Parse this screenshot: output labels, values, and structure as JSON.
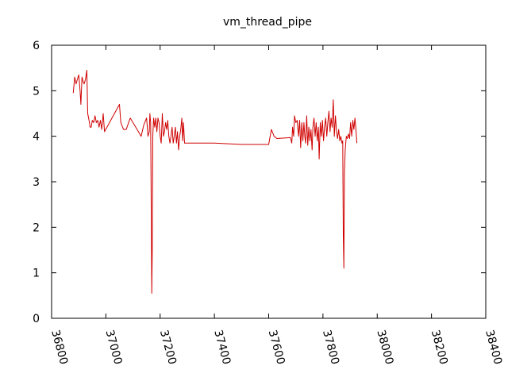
{
  "chart_data": {
    "type": "line",
    "title": "vm_thread_pipe",
    "xlabel": "",
    "ylabel": "",
    "xlim": [
      36800,
      38400
    ],
    "ylim": [
      0,
      6
    ],
    "x_ticks": [
      36800,
      37000,
      37200,
      37400,
      37600,
      37800,
      38000,
      38200,
      38400
    ],
    "y_ticks": [
      0,
      1,
      2,
      3,
      4,
      5,
      6
    ],
    "grid": false,
    "legend": "none",
    "series": [
      {
        "color": "#d00000",
        "points": [
          [
            36880,
            4.95
          ],
          [
            36885,
            5.3
          ],
          [
            36890,
            5.15
          ],
          [
            36895,
            5.25
          ],
          [
            36900,
            5.35
          ],
          [
            36905,
            5.0
          ],
          [
            36908,
            4.7
          ],
          [
            36912,
            5.3
          ],
          [
            36916,
            5.2
          ],
          [
            36920,
            5.15
          ],
          [
            36925,
            5.25
          ],
          [
            36930,
            5.45
          ],
          [
            36933,
            4.5
          ],
          [
            36938,
            4.35
          ],
          [
            36942,
            4.2
          ],
          [
            36946,
            4.2
          ],
          [
            36950,
            4.35
          ],
          [
            36955,
            4.3
          ],
          [
            36960,
            4.45
          ],
          [
            36965,
            4.3
          ],
          [
            36970,
            4.35
          ],
          [
            36975,
            4.2
          ],
          [
            36980,
            4.35
          ],
          [
            36985,
            4.15
          ],
          [
            36990,
            4.5
          ],
          [
            36995,
            4.1
          ],
          [
            37050,
            4.7
          ],
          [
            37055,
            4.3
          ],
          [
            37065,
            4.15
          ],
          [
            37075,
            4.15
          ],
          [
            37090,
            4.4
          ],
          [
            37110,
            4.2
          ],
          [
            37120,
            4.1
          ],
          [
            37130,
            4.0
          ],
          [
            37140,
            4.25
          ],
          [
            37150,
            4.4
          ],
          [
            37155,
            4.0
          ],
          [
            37160,
            4.1
          ],
          [
            37162,
            4.5
          ],
          [
            37165,
            4.3
          ],
          [
            37167,
            2.5
          ],
          [
            37169,
            0.55
          ],
          [
            37171,
            1.5
          ],
          [
            37173,
            4.0
          ],
          [
            37176,
            4.4
          ],
          [
            37180,
            4.2
          ],
          [
            37184,
            4.4
          ],
          [
            37188,
            4.1
          ],
          [
            37192,
            4.4
          ],
          [
            37196,
            4.3
          ],
          [
            37200,
            4.0
          ],
          [
            37204,
            3.85
          ],
          [
            37208,
            4.5
          ],
          [
            37212,
            4.0
          ],
          [
            37216,
            4.1
          ],
          [
            37220,
            4.3
          ],
          [
            37224,
            4.15
          ],
          [
            37228,
            4.35
          ],
          [
            37232,
            4.0
          ],
          [
            37236,
            3.85
          ],
          [
            37240,
            4.0
          ],
          [
            37244,
            4.2
          ],
          [
            37248,
            3.85
          ],
          [
            37252,
            4.0
          ],
          [
            37256,
            4.2
          ],
          [
            37260,
            3.85
          ],
          [
            37264,
            4.1
          ],
          [
            37268,
            3.7
          ],
          [
            37272,
            4.0
          ],
          [
            37276,
            4.15
          ],
          [
            37280,
            4.4
          ],
          [
            37283,
            3.9
          ],
          [
            37286,
            4.3
          ],
          [
            37290,
            3.85
          ],
          [
            37400,
            3.85
          ],
          [
            37500,
            3.82
          ],
          [
            37600,
            3.82
          ],
          [
            37610,
            4.15
          ],
          [
            37620,
            4.0
          ],
          [
            37630,
            3.95
          ],
          [
            37680,
            3.97
          ],
          [
            37685,
            3.85
          ],
          [
            37688,
            4.2
          ],
          [
            37692,
            4.0
          ],
          [
            37695,
            4.45
          ],
          [
            37700,
            4.3
          ],
          [
            37705,
            4.35
          ],
          [
            37710,
            4.0
          ],
          [
            37714,
            4.35
          ],
          [
            37718,
            3.75
          ],
          [
            37722,
            4.3
          ],
          [
            37726,
            3.9
          ],
          [
            37730,
            4.3
          ],
          [
            37733,
            4.0
          ],
          [
            37736,
            3.85
          ],
          [
            37740,
            4.45
          ],
          [
            37744,
            3.8
          ],
          [
            37748,
            4.2
          ],
          [
            37752,
            3.9
          ],
          [
            37756,
            4.15
          ],
          [
            37760,
            3.7
          ],
          [
            37763,
            4.2
          ],
          [
            37767,
            4.4
          ],
          [
            37771,
            4.0
          ],
          [
            37775,
            4.3
          ],
          [
            37779,
            3.9
          ],
          [
            37783,
            4.2
          ],
          [
            37786,
            3.5
          ],
          [
            37790,
            4.3
          ],
          [
            37794,
            4.0
          ],
          [
            37798,
            4.35
          ],
          [
            37802,
            3.9
          ],
          [
            37806,
            4.2
          ],
          [
            37810,
            4.4
          ],
          [
            37814,
            4.0
          ],
          [
            37818,
            4.3
          ],
          [
            37822,
            4.55
          ],
          [
            37826,
            4.1
          ],
          [
            37830,
            4.4
          ],
          [
            37834,
            4.2
          ],
          [
            37838,
            4.8
          ],
          [
            37842,
            4.0
          ],
          [
            37846,
            4.45
          ],
          [
            37850,
            4.1
          ],
          [
            37854,
            3.95
          ],
          [
            37858,
            4.15
          ],
          [
            37862,
            3.9
          ],
          [
            37866,
            4.0
          ],
          [
            37870,
            3.85
          ],
          [
            37873,
            3.9
          ],
          [
            37875,
            1.8
          ],
          [
            37877,
            1.1
          ],
          [
            37879,
            3.2
          ],
          [
            37882,
            3.7
          ],
          [
            37886,
            4.0
          ],
          [
            37890,
            3.95
          ],
          [
            37894,
            4.05
          ],
          [
            37898,
            3.95
          ],
          [
            37902,
            4.3
          ],
          [
            37906,
            4.0
          ],
          [
            37910,
            4.35
          ],
          [
            37914,
            4.15
          ],
          [
            37918,
            4.4
          ],
          [
            37922,
            4.1
          ],
          [
            37925,
            3.85
          ]
        ]
      }
    ]
  }
}
